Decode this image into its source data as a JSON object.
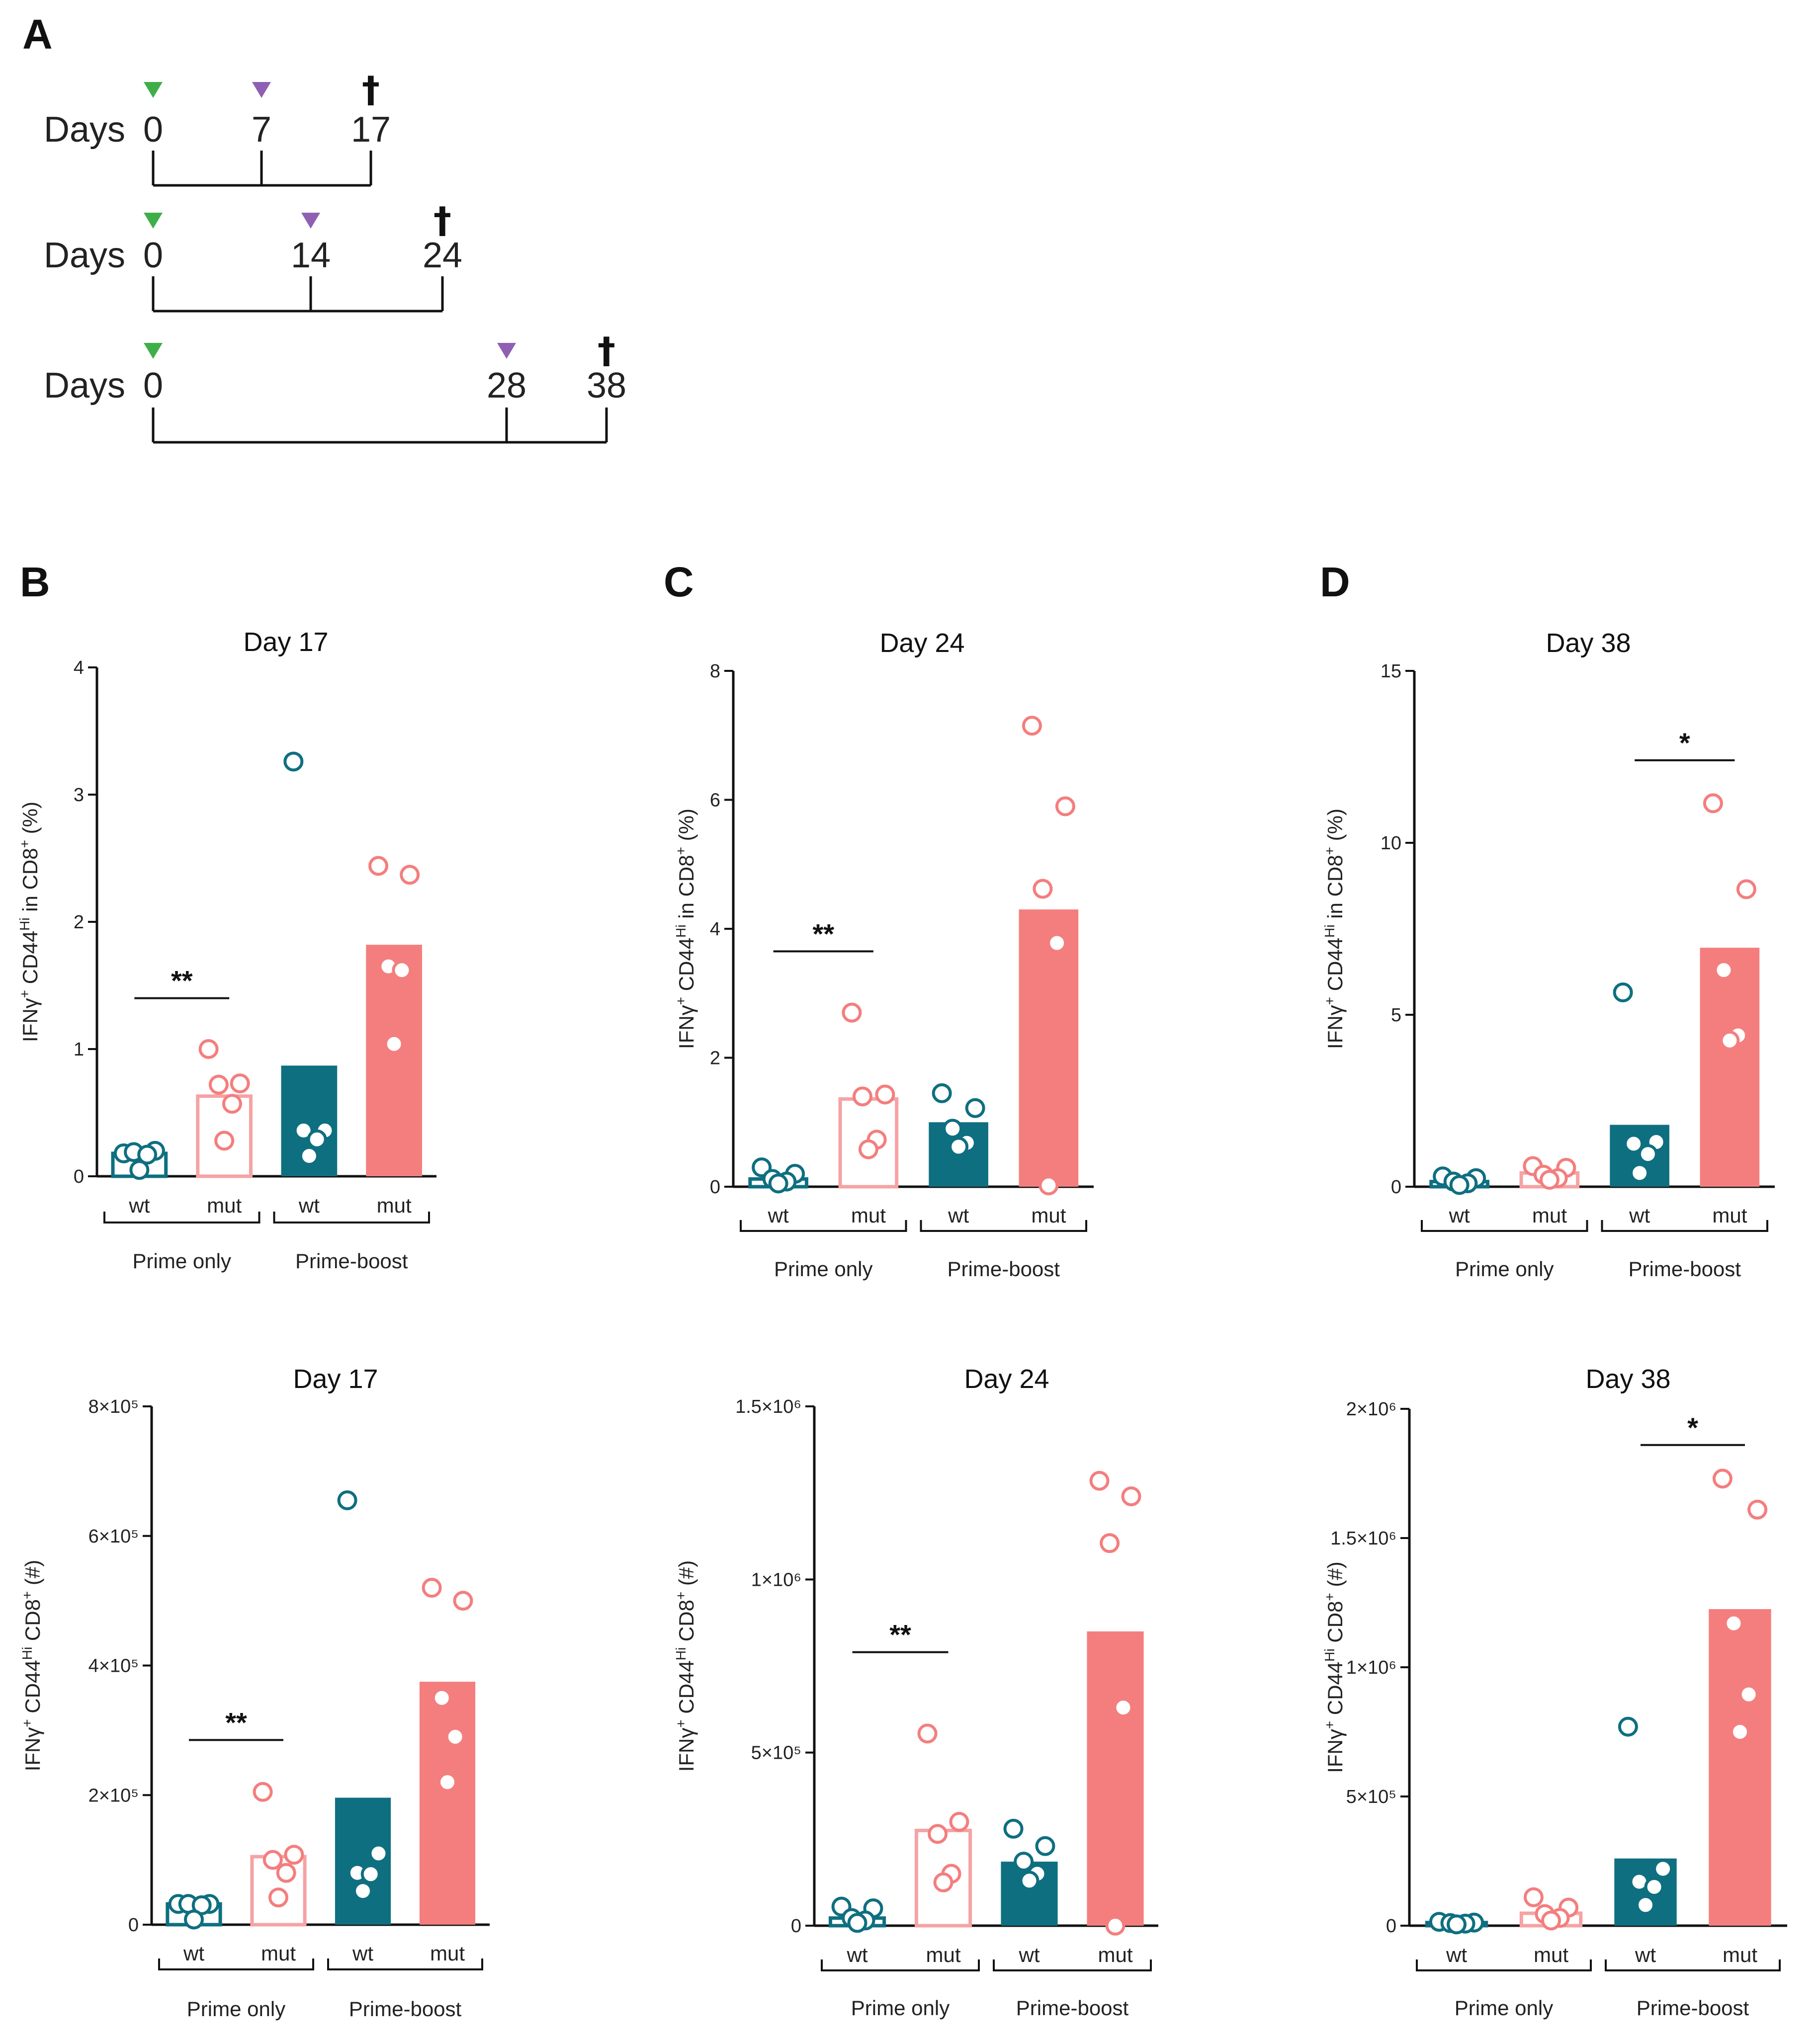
{
  "colors": {
    "teal": "#0e6f80",
    "salmon": "#f47e7e",
    "salmon_light": "#f5a3a3",
    "prime_marker": "#3fae49",
    "boost_marker": "#8e5fb3",
    "axis": "#111111"
  },
  "panel_a": {
    "letter": "A",
    "days_label": "Days",
    "cross_symbol": "†",
    "timelines": [
      {
        "days": [
          "0",
          "7",
          "17"
        ],
        "prime_day": 0,
        "boost_day": 7,
        "end_day": 17
      },
      {
        "days": [
          "0",
          "14",
          "24"
        ],
        "prime_day": 0,
        "boost_day": 14,
        "end_day": 24
      },
      {
        "days": [
          "0",
          "28",
          "38"
        ],
        "prime_day": 0,
        "boost_day": 28,
        "end_day": 38
      }
    ]
  },
  "panel_letters": [
    "B",
    "C",
    "D"
  ],
  "chart_data": [
    {
      "type": "bar",
      "panel": "B",
      "title": "Day 17",
      "ylabel": {
        "parts": [
          "IFNγ",
          "+",
          " CD44",
          "Hi",
          " in CD8",
          "+",
          " (%)"
        ]
      },
      "ylim": [
        0,
        4
      ],
      "yticks": [
        {
          "value": 0,
          "label": "0"
        },
        {
          "value": 1,
          "label": "1"
        },
        {
          "value": 2,
          "label": "2"
        },
        {
          "value": 3,
          "label": "3"
        },
        {
          "value": 4,
          "label": "4"
        }
      ],
      "categories": [
        "wt",
        "mut",
        "wt",
        "mut"
      ],
      "groups": [
        {
          "label": "Prime only",
          "span": [
            0,
            1
          ]
        },
        {
          "label": "Prime-boost",
          "span": [
            2,
            3
          ]
        }
      ],
      "bars": [
        {
          "value": 0.18,
          "style": "outline",
          "color": "teal",
          "points": [
            0.18,
            0.2,
            0.19,
            0.17,
            0.05
          ]
        },
        {
          "value": 0.63,
          "style": "outline",
          "color": "salmon_light",
          "points": [
            1.0,
            0.73,
            0.72,
            0.57,
            0.28
          ]
        },
        {
          "value": 0.87,
          "style": "filled",
          "color": "teal",
          "points": [
            3.26,
            0.36,
            0.36,
            0.29,
            0.16
          ]
        },
        {
          "value": 1.82,
          "style": "filled",
          "color": "salmon",
          "points": [
            2.44,
            2.37,
            1.65,
            1.62,
            1.04
          ]
        }
      ],
      "significance": [
        {
          "label": "**",
          "from": 0,
          "to": 1,
          "y": 1.4
        }
      ]
    },
    {
      "type": "bar",
      "panel": "C",
      "title": "Day 24",
      "ylabel": {
        "parts": [
          "IFNγ",
          "+",
          " CD44",
          "Hi",
          " in CD8",
          "+",
          " (%)"
        ]
      },
      "ylim": [
        0,
        8
      ],
      "yticks": [
        {
          "value": 0,
          "label": "0"
        },
        {
          "value": 2,
          "label": "2"
        },
        {
          "value": 4,
          "label": "4"
        },
        {
          "value": 6,
          "label": "6"
        },
        {
          "value": 8,
          "label": "8"
        }
      ],
      "categories": [
        "wt",
        "mut",
        "wt",
        "mut"
      ],
      "groups": [
        {
          "label": "Prime only",
          "span": [
            0,
            1
          ]
        },
        {
          "label": "Prime-boost",
          "span": [
            2,
            3
          ]
        }
      ],
      "bars": [
        {
          "value": 0.12,
          "style": "outline",
          "color": "teal",
          "points": [
            0.3,
            0.2,
            0.12,
            0.08,
            0.05
          ]
        },
        {
          "value": 1.36,
          "style": "outline",
          "color": "salmon_light",
          "points": [
            2.7,
            1.43,
            1.4,
            0.73,
            0.58
          ]
        },
        {
          "value": 1.0,
          "style": "filled",
          "color": "teal",
          "points": [
            1.45,
            1.22,
            0.9,
            0.68,
            0.62
          ]
        },
        {
          "value": 4.3,
          "style": "filled",
          "color": "salmon",
          "points": [
            7.15,
            5.9,
            4.62,
            3.78,
            0.02
          ]
        }
      ],
      "significance": [
        {
          "label": "**",
          "from": 0,
          "to": 1,
          "y": 3.65
        }
      ]
    },
    {
      "type": "bar",
      "panel": "D",
      "title": "Day 38",
      "ylabel": {
        "parts": [
          "IFNγ",
          "+",
          " CD44",
          "Hi",
          " in CD8",
          "+",
          " (%)"
        ]
      },
      "ylim": [
        0,
        15
      ],
      "yticks": [
        {
          "value": 0,
          "label": "0"
        },
        {
          "value": 5,
          "label": "5"
        },
        {
          "value": 10,
          "label": "10"
        },
        {
          "value": 15,
          "label": "15"
        }
      ],
      "categories": [
        "wt",
        "mut",
        "wt",
        "mut"
      ],
      "groups": [
        {
          "label": "Prime only",
          "span": [
            0,
            1
          ]
        },
        {
          "label": "Prime-boost",
          "span": [
            2,
            3
          ]
        }
      ],
      "bars": [
        {
          "value": 0.15,
          "style": "outline",
          "color": "teal",
          "points": [
            0.3,
            0.25,
            0.15,
            0.1,
            0.05
          ]
        },
        {
          "value": 0.4,
          "style": "outline",
          "color": "salmon_light",
          "points": [
            0.6,
            0.55,
            0.35,
            0.25,
            0.2
          ]
        },
        {
          "value": 1.8,
          "style": "filled",
          "color": "teal",
          "points": [
            5.65,
            1.3,
            1.25,
            0.95,
            0.4
          ]
        },
        {
          "value": 6.95,
          "style": "filled",
          "color": "salmon",
          "points": [
            11.15,
            8.65,
            6.3,
            4.4,
            4.25
          ]
        }
      ],
      "significance": [
        {
          "label": "*",
          "from": 2,
          "to": 3,
          "y": 12.4
        }
      ]
    },
    {
      "type": "bar",
      "panel": "B-lower",
      "title": "Day 17",
      "ylabel": {
        "parts": [
          "IFNγ",
          "+",
          " CD44",
          "Hi",
          " CD8",
          "+",
          " (#)"
        ]
      },
      "ylim": [
        0,
        800000
      ],
      "yticks": [
        {
          "value": 0,
          "label": "0"
        },
        {
          "value": 200000,
          "label": "2×10⁵"
        },
        {
          "value": 400000,
          "label": "4×10⁵"
        },
        {
          "value": 600000,
          "label": "6×10⁵"
        },
        {
          "value": 800000,
          "label": "8×10⁵"
        }
      ],
      "categories": [
        "wt",
        "mut",
        "wt",
        "mut"
      ],
      "groups": [
        {
          "label": "Prime only",
          "span": [
            0,
            1
          ]
        },
        {
          "label": "Prime-boost",
          "span": [
            2,
            3
          ]
        }
      ],
      "bars": [
        {
          "value": 32000,
          "style": "outline",
          "color": "teal",
          "points": [
            32000,
            32000,
            32000,
            30000,
            8000
          ]
        },
        {
          "value": 105000,
          "style": "outline",
          "color": "salmon_light",
          "points": [
            205000,
            108000,
            100000,
            80000,
            42000
          ]
        },
        {
          "value": 196000,
          "style": "filled",
          "color": "teal",
          "points": [
            655000,
            110000,
            80000,
            78000,
            52000
          ]
        },
        {
          "value": 375000,
          "style": "filled",
          "color": "salmon",
          "points": [
            520000,
            500000,
            350000,
            290000,
            220000
          ]
        }
      ],
      "significance": [
        {
          "label": "**",
          "from": 0,
          "to": 1,
          "y": 285000
        }
      ]
    },
    {
      "type": "bar",
      "panel": "C-lower",
      "title": "Day 24",
      "ylabel": {
        "parts": [
          "IFNγ",
          "+",
          " CD44",
          "Hi",
          " CD8",
          "+",
          " (#)"
        ]
      },
      "ylim": [
        0,
        1500000
      ],
      "yticks": [
        {
          "value": 0,
          "label": "0"
        },
        {
          "value": 500000,
          "label": "5×10⁵"
        },
        {
          "value": 1000000,
          "label": "1×10⁶"
        },
        {
          "value": 1500000,
          "label": "1.5×10⁶"
        }
      ],
      "categories": [
        "wt",
        "mut",
        "wt",
        "mut"
      ],
      "groups": [
        {
          "label": "Prime only",
          "span": [
            0,
            1
          ]
        },
        {
          "label": "Prime-boost",
          "span": [
            2,
            3
          ]
        }
      ],
      "bars": [
        {
          "value": 22000,
          "style": "outline",
          "color": "teal",
          "points": [
            55000,
            50000,
            22000,
            15000,
            8000
          ]
        },
        {
          "value": 275000,
          "style": "outline",
          "color": "salmon_light",
          "points": [
            555000,
            300000,
            265000,
            150000,
            125000
          ]
        },
        {
          "value": 185000,
          "style": "filled",
          "color": "teal",
          "points": [
            280000,
            230000,
            185000,
            150000,
            130000
          ]
        },
        {
          "value": 850000,
          "style": "filled",
          "color": "salmon",
          "points": [
            1285000,
            1240000,
            1105000,
            630000,
            0
          ]
        }
      ],
      "significance": [
        {
          "label": "**",
          "from": 0,
          "to": 1,
          "y": 790000
        }
      ]
    },
    {
      "type": "bar",
      "panel": "D-lower",
      "title": "Day 38",
      "ylabel": {
        "parts": [
          "IFNγ",
          "+",
          " CD44",
          "Hi",
          " CD8",
          "+",
          " (#)"
        ]
      },
      "ylim": [
        0,
        2000000
      ],
      "yticks": [
        {
          "value": 0,
          "label": "0"
        },
        {
          "value": 500000,
          "label": "5×10⁵"
        },
        {
          "value": 1000000,
          "label": "1×10⁶"
        },
        {
          "value": 1500000,
          "label": "1.5×10⁶"
        },
        {
          "value": 2000000,
          "label": "2×10⁶"
        }
      ],
      "categories": [
        "wt",
        "mut",
        "wt",
        "mut"
      ],
      "groups": [
        {
          "label": "Prime only",
          "span": [
            0,
            1
          ]
        },
        {
          "label": "Prime-boost",
          "span": [
            2,
            3
          ]
        }
      ],
      "bars": [
        {
          "value": 12000,
          "style": "outline",
          "color": "teal",
          "points": [
            15000,
            12000,
            10000,
            8000,
            5000
          ]
        },
        {
          "value": 48000,
          "style": "outline",
          "color": "salmon_light",
          "points": [
            110000,
            70000,
            45000,
            30000,
            20000
          ]
        },
        {
          "value": 260000,
          "style": "filled",
          "color": "teal",
          "points": [
            770000,
            220000,
            170000,
            150000,
            80000
          ]
        },
        {
          "value": 1225000,
          "style": "filled",
          "color": "salmon",
          "points": [
            1730000,
            1610000,
            1170000,
            895000,
            750000
          ]
        }
      ],
      "significance": [
        {
          "label": "*",
          "from": 2,
          "to": 3,
          "y": 1860000
        }
      ]
    }
  ]
}
